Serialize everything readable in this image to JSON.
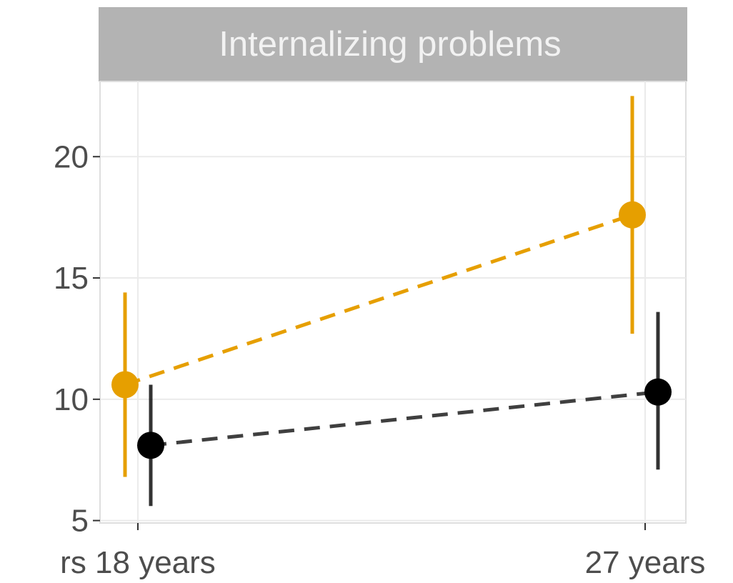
{
  "chart_data": {
    "type": "line",
    "title": "Internalizing problems",
    "x_ticks": [
      "rs 18 years",
      "27 years"
    ],
    "y_ticks": [
      5,
      10,
      15,
      20
    ],
    "ylim": [
      4.9,
      23.1
    ],
    "grid": true,
    "legend": "none",
    "series": [
      {
        "color": "#E69F00",
        "line_style": "dashed",
        "points": [
          {
            "x": "18 years",
            "y": 10.6,
            "lower": 6.8,
            "upper": 14.4
          },
          {
            "x": "27 years",
            "y": 17.6,
            "upper": 22.5,
            "lower": 12.7
          }
        ]
      },
      {
        "color": "#000000",
        "line_style": "dashed",
        "points": [
          {
            "x": "18 years",
            "y": 8.1,
            "lower": 5.6,
            "upper": 10.6
          },
          {
            "x": "27 years",
            "y": 10.3,
            "lower": 7.1,
            "upper": 13.6
          }
        ]
      }
    ]
  }
}
